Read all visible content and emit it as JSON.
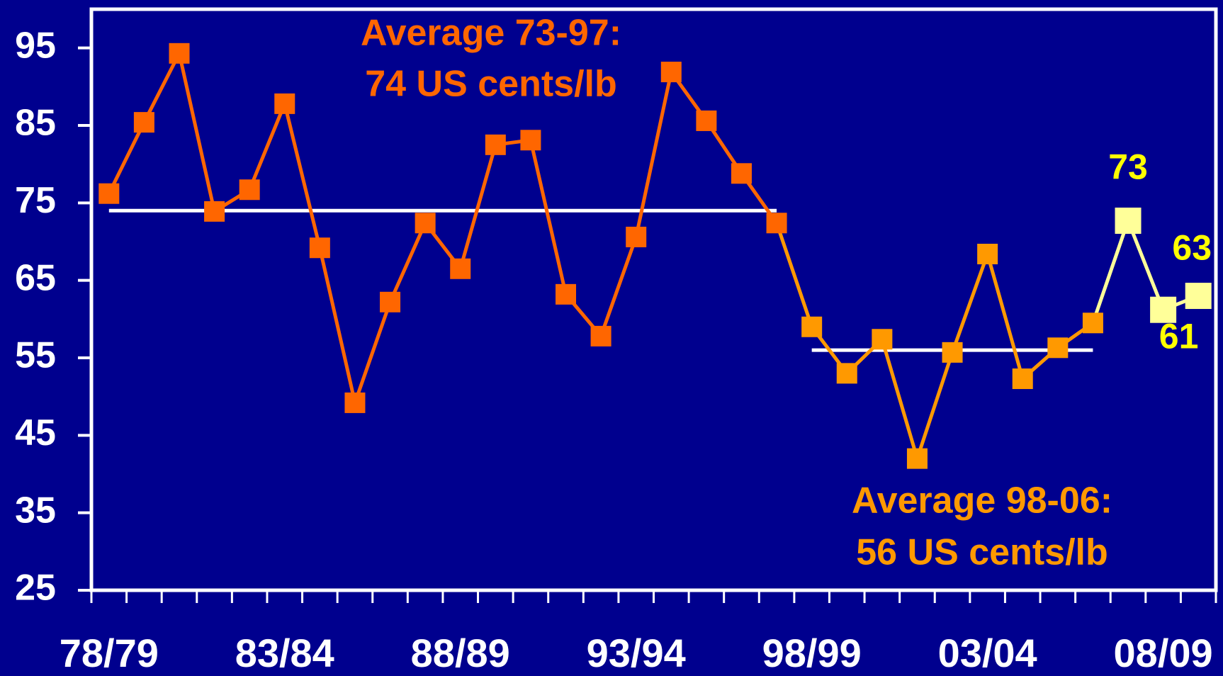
{
  "chart_data": {
    "type": "line",
    "categories": [
      "78/79",
      null,
      null,
      null,
      null,
      "83/84",
      null,
      null,
      null,
      null,
      "88/89",
      null,
      null,
      null,
      null,
      "93/94",
      null,
      null,
      null,
      null,
      "98/99",
      null,
      null,
      null,
      null,
      "03/04",
      null,
      null,
      null,
      null,
      "08/09",
      null
    ],
    "series": [
      {
        "color": "#ff6600",
        "marker_color": "#ff6600",
        "values": [
          76.2,
          85.4,
          94.3,
          73.9,
          76.7,
          87.8,
          69.2,
          49.2,
          62.2,
          72.4,
          66.5,
          82.5,
          83.1,
          63.2,
          57.8,
          70.6,
          91.9,
          85.6,
          78.8,
          72.4,
          null,
          null,
          null,
          null,
          null,
          null,
          null,
          null,
          null,
          null,
          null,
          null
        ]
      },
      {
        "color": "#ff9900",
        "marker_color": "#ff9900",
        "values": [
          null,
          null,
          null,
          null,
          null,
          null,
          null,
          null,
          null,
          null,
          null,
          null,
          null,
          null,
          null,
          null,
          null,
          null,
          null,
          null,
          59.0,
          53.0,
          57.4,
          42.0,
          55.7,
          68.4,
          52.3,
          56.3,
          59.5,
          null,
          null,
          null
        ]
      },
      {
        "color": "#ffff99",
        "marker_color": "#ffff99",
        "label_color": "#ffff00",
        "values": [
          null,
          null,
          null,
          null,
          null,
          null,
          null,
          null,
          null,
          null,
          null,
          null,
          null,
          null,
          null,
          null,
          null,
          null,
          null,
          null,
          null,
          null,
          null,
          null,
          null,
          null,
          null,
          null,
          null,
          72.7,
          61.2,
          63.0
        ],
        "value_labels": [
          null,
          null,
          null,
          null,
          null,
          null,
          null,
          null,
          null,
          null,
          null,
          null,
          null,
          null,
          null,
          null,
          null,
          null,
          null,
          null,
          null,
          null,
          null,
          null,
          null,
          null,
          null,
          null,
          null,
          "73",
          "61",
          "63"
        ]
      }
    ],
    "averages": [
      {
        "value": 74,
        "text": [
          "Average 73-97:",
          "74 US cents/lb"
        ],
        "color": "#ff6600"
      },
      {
        "value": 56,
        "text": [
          "Average 98-06:",
          "56 US cents/lb"
        ],
        "color": "#ff9900"
      }
    ],
    "ylim": [
      25,
      100
    ],
    "yticks": [
      25,
      35,
      45,
      55,
      65,
      75,
      85,
      95
    ]
  }
}
